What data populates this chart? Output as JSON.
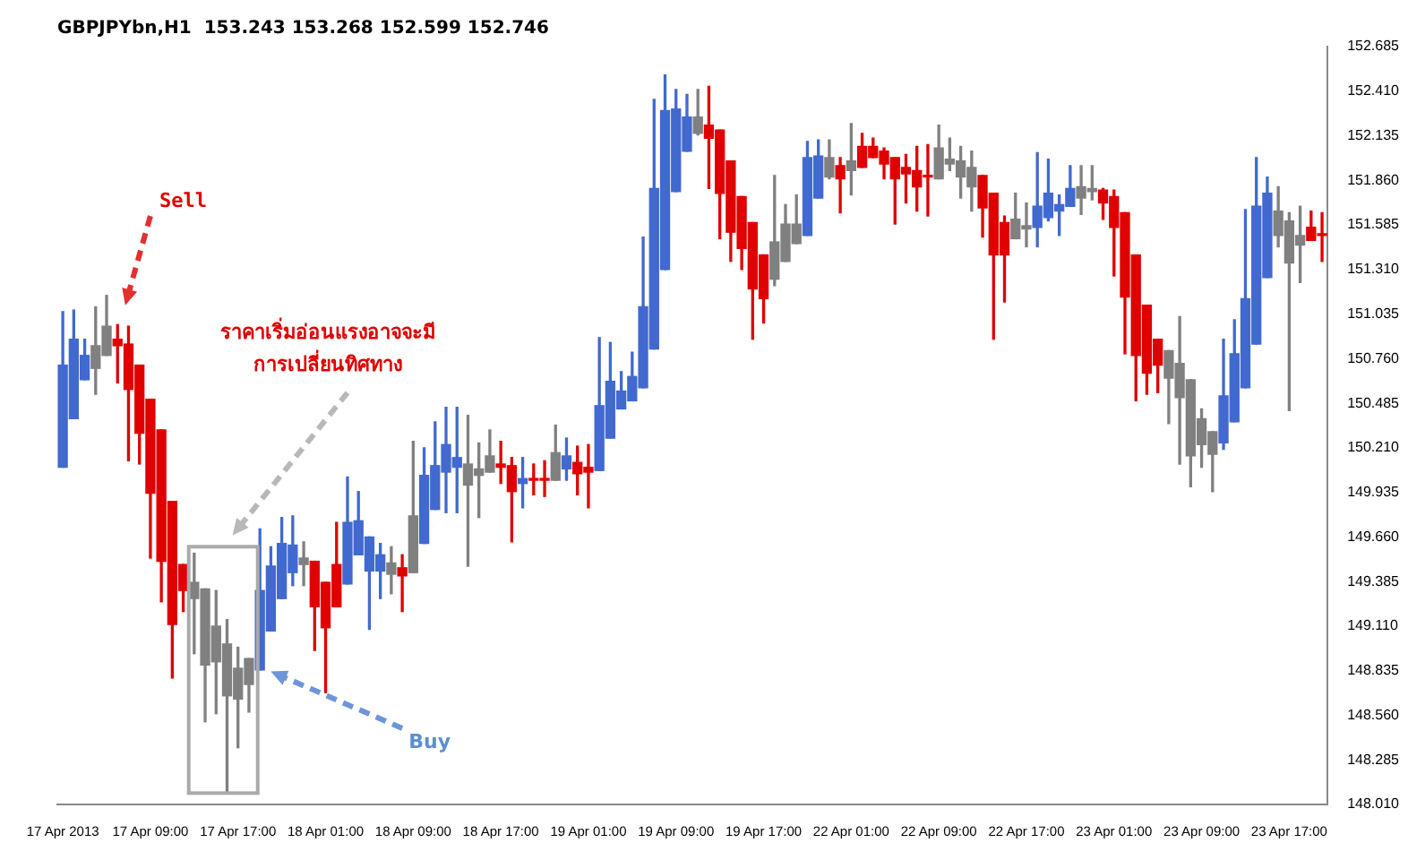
{
  "chart_data": {
    "type": "candlestick",
    "title": "GBPJPYbn,H1  153.243 153.268 152.599 152.746",
    "categories": [
      "17 Apr 2013",
      null,
      null,
      null,
      null,
      null,
      null,
      null,
      "17 Apr 09:00",
      null,
      null,
      null,
      null,
      null,
      null,
      null,
      "17 Apr 17:00",
      null,
      null,
      null,
      null,
      null,
      null,
      null,
      "18 Apr 01:00",
      null,
      null,
      null,
      null,
      null,
      null,
      null,
      "18 Apr 09:00",
      null,
      null,
      null,
      null,
      null,
      null,
      null,
      "18 Apr 17:00",
      null,
      null,
      null,
      null,
      null,
      null,
      null,
      "19 Apr 01:00",
      null,
      null,
      null,
      null,
      null,
      null,
      null,
      "19 Apr 09:00",
      null,
      null,
      null,
      null,
      null,
      null,
      null,
      "19 Apr 17:00",
      null,
      null,
      null,
      null,
      null,
      null,
      null,
      "22 Apr 01:00",
      null,
      null,
      null,
      null,
      null,
      null,
      null,
      "22 Apr 09:00",
      null,
      null,
      null,
      null,
      null,
      null,
      null,
      "22 Apr 17:00",
      null,
      null,
      null,
      null,
      null,
      null,
      null,
      "23 Apr 01:00",
      null,
      null,
      null,
      null,
      null,
      null,
      null,
      "23 Apr 09:00",
      null,
      null,
      null,
      null,
      null,
      null,
      null,
      "23 Apr 17:00",
      null,
      null,
      null
    ],
    "ohlc": [
      [
        150.09,
        151.05,
        150.09,
        150.72
      ],
      [
        150.39,
        151.06,
        150.39,
        150.88
      ],
      [
        150.63,
        150.88,
        150.63,
        150.78
      ],
      [
        150.84,
        151.08,
        150.54,
        150.7
      ],
      [
        150.96,
        151.15,
        150.78,
        150.78
      ],
      [
        150.88,
        150.97,
        150.61,
        150.84
      ],
      [
        150.85,
        150.96,
        150.13,
        150.57
      ],
      [
        150.72,
        150.72,
        150.11,
        150.3
      ],
      [
        150.51,
        150.51,
        149.53,
        149.93
      ],
      [
        150.32,
        150.32,
        149.26,
        149.51
      ],
      [
        149.88,
        149.88,
        148.79,
        149.12
      ],
      [
        149.49,
        149.49,
        149.2,
        149.33
      ],
      [
        149.38,
        149.56,
        148.94,
        149.28
      ],
      [
        149.34,
        149.34,
        148.52,
        148.87
      ],
      [
        149.11,
        149.33,
        148.57,
        148.89
      ],
      [
        149.0,
        149.15,
        148.08,
        148.68
      ],
      [
        148.85,
        148.98,
        148.36,
        148.66
      ],
      [
        148.91,
        148.91,
        148.58,
        148.75
      ],
      [
        148.84,
        149.71,
        148.84,
        149.33
      ],
      [
        149.08,
        149.6,
        149.08,
        149.48
      ],
      [
        149.28,
        149.78,
        149.28,
        149.62
      ],
      [
        149.44,
        149.79,
        149.36,
        149.61
      ],
      [
        149.53,
        149.63,
        149.36,
        149.49
      ],
      [
        149.51,
        149.51,
        148.96,
        149.23
      ],
      [
        149.38,
        149.38,
        148.7,
        149.1
      ],
      [
        149.49,
        149.75,
        149.23,
        149.23
      ],
      [
        149.37,
        150.03,
        149.37,
        149.75
      ],
      [
        149.55,
        149.94,
        149.55,
        149.76
      ],
      [
        149.45,
        149.66,
        149.09,
        149.66
      ],
      [
        149.45,
        149.62,
        149.28,
        149.55
      ],
      [
        149.5,
        149.6,
        149.31,
        149.43
      ],
      [
        149.47,
        149.55,
        149.2,
        149.42
      ],
      [
        149.79,
        150.25,
        149.44,
        149.44
      ],
      [
        149.62,
        150.21,
        149.62,
        150.04
      ],
      [
        149.83,
        150.37,
        149.83,
        150.1
      ],
      [
        150.06,
        150.46,
        149.81,
        150.23
      ],
      [
        150.09,
        150.46,
        149.81,
        150.15
      ],
      [
        150.11,
        150.41,
        149.48,
        149.98
      ],
      [
        150.08,
        150.24,
        149.78,
        150.04
      ],
      [
        150.16,
        150.32,
        150.06,
        150.06
      ],
      [
        150.11,
        150.25,
        149.99,
        150.09
      ],
      [
        150.1,
        150.15,
        149.63,
        149.94
      ],
      [
        149.99,
        150.15,
        149.84,
        150.02
      ],
      [
        150.02,
        150.11,
        149.92,
        150.01
      ],
      [
        150.02,
        150.13,
        149.91,
        150.01
      ],
      [
        150.18,
        150.35,
        150.01,
        150.01
      ],
      [
        150.08,
        150.27,
        150.01,
        150.16
      ],
      [
        150.12,
        150.22,
        149.92,
        150.05
      ],
      [
        150.09,
        150.23,
        149.84,
        150.06
      ],
      [
        150.07,
        150.89,
        150.07,
        150.47
      ],
      [
        150.27,
        150.86,
        150.27,
        150.62
      ],
      [
        150.45,
        150.68,
        150.45,
        150.56
      ],
      [
        150.5,
        150.8,
        150.5,
        150.65
      ],
      [
        150.58,
        151.51,
        150.58,
        151.08
      ],
      [
        150.82,
        152.36,
        150.82,
        151.81
      ],
      [
        151.31,
        152.51,
        151.31,
        152.29
      ],
      [
        151.79,
        152.42,
        151.79,
        152.3
      ],
      [
        152.04,
        152.39,
        152.04,
        152.25
      ],
      [
        152.25,
        152.42,
        152.14,
        152.15
      ],
      [
        152.2,
        152.44,
        151.81,
        152.12
      ],
      [
        152.17,
        152.17,
        151.5,
        151.78
      ],
      [
        151.98,
        151.98,
        151.36,
        151.54
      ],
      [
        151.76,
        151.76,
        151.31,
        151.44
      ],
      [
        151.6,
        151.6,
        150.88,
        151.19
      ],
      [
        151.4,
        151.4,
        150.98,
        151.13
      ],
      [
        151.48,
        151.89,
        151.21,
        151.25
      ],
      [
        151.59,
        151.71,
        151.36,
        151.36
      ],
      [
        151.59,
        151.77,
        151.47,
        151.47
      ],
      [
        151.52,
        152.1,
        151.52,
        152.0
      ],
      [
        151.75,
        152.11,
        151.75,
        152.01
      ],
      [
        152.0,
        152.11,
        151.87,
        151.88
      ],
      [
        151.95,
        152.0,
        151.66,
        151.87
      ],
      [
        151.98,
        152.21,
        151.77,
        151.92
      ],
      [
        152.07,
        152.15,
        151.94,
        151.94
      ],
      [
        152.07,
        152.12,
        152.0,
        152.0
      ],
      [
        152.04,
        152.06,
        151.87,
        151.96
      ],
      [
        152.0,
        152.0,
        151.59,
        151.87
      ],
      [
        151.94,
        152.02,
        151.72,
        151.9
      ],
      [
        151.92,
        152.07,
        151.67,
        151.82
      ],
      [
        151.89,
        152.08,
        151.64,
        151.88
      ],
      [
        152.06,
        152.2,
        151.87,
        151.87
      ],
      [
        151.99,
        152.12,
        151.92,
        151.96
      ],
      [
        151.98,
        152.07,
        151.75,
        151.88
      ],
      [
        151.94,
        152.04,
        151.67,
        151.82
      ],
      [
        151.89,
        151.89,
        151.51,
        151.69
      ],
      [
        151.78,
        151.78,
        150.88,
        151.4
      ],
      [
        151.6,
        151.64,
        151.11,
        151.4
      ],
      [
        151.62,
        151.78,
        151.5,
        151.5
      ],
      [
        151.58,
        151.72,
        151.45,
        151.56
      ],
      [
        151.57,
        152.03,
        151.45,
        151.7
      ],
      [
        151.63,
        151.99,
        151.61,
        151.78
      ],
      [
        151.67,
        151.77,
        151.52,
        151.71
      ],
      [
        151.7,
        151.95,
        151.7,
        151.81
      ],
      [
        151.82,
        151.95,
        151.65,
        151.75
      ],
      [
        151.81,
        151.95,
        151.74,
        151.79
      ],
      [
        151.8,
        151.81,
        151.62,
        151.72
      ],
      [
        151.76,
        151.8,
        151.27,
        151.57
      ],
      [
        151.66,
        151.66,
        150.79,
        151.14
      ],
      [
        151.4,
        151.4,
        150.5,
        150.78
      ],
      [
        151.09,
        151.09,
        150.54,
        150.67
      ],
      [
        150.88,
        150.88,
        150.55,
        150.72
      ],
      [
        150.81,
        150.81,
        150.36,
        150.64
      ],
      [
        150.73,
        151.02,
        150.11,
        150.52
      ],
      [
        150.63,
        150.63,
        149.97,
        150.16
      ],
      [
        150.39,
        150.45,
        150.09,
        150.23
      ],
      [
        150.31,
        150.31,
        149.94,
        150.17
      ],
      [
        150.24,
        150.88,
        150.2,
        150.53
      ],
      [
        150.37,
        151.0,
        150.37,
        150.79
      ],
      [
        150.58,
        151.68,
        150.58,
        151.13
      ],
      [
        150.85,
        152.0,
        150.85,
        151.7
      ],
      [
        151.26,
        151.88,
        151.26,
        151.78
      ],
      [
        151.67,
        151.82,
        151.45,
        151.52
      ],
      [
        151.61,
        151.66,
        150.44,
        151.35
      ],
      [
        151.52,
        151.7,
        151.23,
        151.46
      ],
      [
        151.57,
        151.67,
        151.49,
        151.49
      ],
      [
        151.53,
        151.66,
        151.36,
        151.52
      ]
    ],
    "colors": [
      "#4169cf",
      "#4169cf",
      "#4169cf",
      "#808080",
      "#808080",
      "#e00000",
      "#e00000",
      "#e00000",
      "#e00000",
      "#e00000",
      "#e00000",
      "#e00000",
      "#808080",
      "#808080",
      "#808080",
      "#808080",
      "#808080",
      "#808080",
      "#4169cf",
      "#4169cf",
      "#4169cf",
      "#4169cf",
      "#808080",
      "#e00000",
      "#e00000",
      "#e00000",
      "#4169cf",
      "#4169cf",
      "#4169cf",
      "#4169cf",
      "#808080",
      "#e00000",
      "#808080",
      "#4169cf",
      "#4169cf",
      "#4169cf",
      "#4169cf",
      "#808080",
      "#808080",
      "#808080",
      "#e00000",
      "#e00000",
      "#4169cf",
      "#e00000",
      "#e00000",
      "#808080",
      "#4169cf",
      "#e00000",
      "#e00000",
      "#4169cf",
      "#4169cf",
      "#4169cf",
      "#4169cf",
      "#4169cf",
      "#4169cf",
      "#4169cf",
      "#4169cf",
      "#4169cf",
      "#808080",
      "#e00000",
      "#e00000",
      "#e00000",
      "#e00000",
      "#e00000",
      "#e00000",
      "#808080",
      "#808080",
      "#808080",
      "#4169cf",
      "#4169cf",
      "#808080",
      "#e00000",
      "#808080",
      "#e00000",
      "#e00000",
      "#e00000",
      "#e00000",
      "#e00000",
      "#e00000",
      "#e00000",
      "#808080",
      "#808080",
      "#808080",
      "#808080",
      "#e00000",
      "#e00000",
      "#e00000",
      "#808080",
      "#808080",
      "#4169cf",
      "#4169cf",
      "#4169cf",
      "#4169cf",
      "#808080",
      "#808080",
      "#e00000",
      "#e00000",
      "#e00000",
      "#e00000",
      "#e00000",
      "#e00000",
      "#808080",
      "#808080",
      "#808080",
      "#808080",
      "#808080",
      "#4169cf",
      "#4169cf",
      "#4169cf",
      "#4169cf",
      "#4169cf",
      "#808080",
      "#808080",
      "#808080",
      "#e00000",
      "#e00000"
    ],
    "ylim": [
      148.01,
      152.685
    ],
    "yticks": [
      {
        "value": 148.01,
        "label": "148.010"
      },
      148.285,
      {
        "value": 148.56,
        "label": "148.560"
      },
      148.835,
      {
        "value": 149.11,
        "label": "149.110"
      },
      149.385,
      {
        "value": 149.66,
        "label": "149.660"
      },
      149.935,
      {
        "value": 150.21,
        "label": "150.210"
      },
      150.485,
      {
        "value": 150.76,
        "label": "150.760"
      },
      151.035,
      {
        "value": 151.31,
        "label": "151.310"
      },
      151.585,
      {
        "value": 151.86,
        "label": "151.860"
      },
      152.135,
      {
        "value": 152.41,
        "label": "152.410"
      },
      152.685
    ],
    "annotations": [
      "Sell",
      "ราคาเริ่มอ่อนแรงอาจจะมี",
      "การเปลี่ยนทิศทาง",
      "Buy"
    ]
  }
}
